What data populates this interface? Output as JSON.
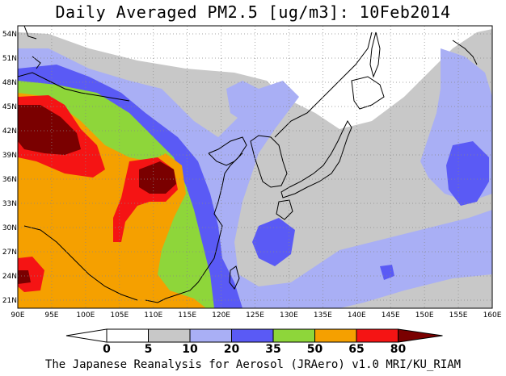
{
  "title": "Daily Averaged PM2.5 [ug/m3]: 10Feb2014",
  "footer": "The Japanese Reanalysis for Aerosol (JRAero) v1.0 MRI/KU_RIAM",
  "map": {
    "lon_range": [
      90,
      160
    ],
    "lat_range": [
      20,
      55
    ],
    "grid": true,
    "lon_ticks": [
      "90E",
      "95E",
      "100E",
      "105E",
      "110E",
      "115E",
      "120E",
      "125E",
      "130E",
      "135E",
      "140E",
      "145E",
      "150E",
      "155E",
      "160E"
    ],
    "lat_ticks": [
      "54N",
      "51N",
      "48N",
      "45N",
      "42N",
      "39N",
      "36N",
      "33N",
      "30N",
      "27N",
      "24N",
      "21N"
    ]
  },
  "colorbar": {
    "labels": [
      "0",
      "5",
      "10",
      "20",
      "35",
      "50",
      "65",
      "80"
    ],
    "colors": [
      "#ffffff",
      "#c8c8c8",
      "#a9aff5",
      "#5a5af5",
      "#8ed63a",
      "#f5a000",
      "#f51414",
      "#7a0000"
    ]
  },
  "chart_data": {
    "type": "heatmap",
    "title": "Daily Averaged PM2.5 [ug/m3]: 10Feb2014",
    "xlabel": "",
    "ylabel": "",
    "xlim": [
      90,
      160
    ],
    "ylim": [
      20,
      55
    ],
    "levels": [
      0,
      5,
      10,
      20,
      35,
      50,
      65,
      80
    ],
    "units": "ug/m3",
    "date": "10Feb2014"
  }
}
